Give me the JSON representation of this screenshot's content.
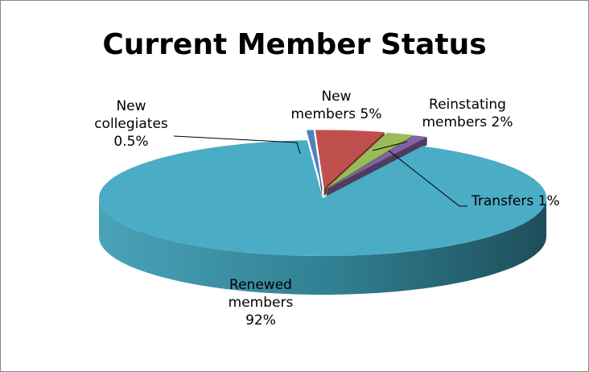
{
  "chart_data": {
    "type": "pie",
    "title": "Current Member Status",
    "categories": [
      "New collegiates",
      "New members",
      "Reinstating members",
      "Transfers",
      "Renewed members"
    ],
    "values": [
      0.5,
      5,
      2,
      1,
      92
    ],
    "value_labels": [
      "0.5%",
      "5%",
      "2%",
      "1%",
      "92%"
    ],
    "colors": [
      "#4f81bd",
      "#c0504d",
      "#9bbb59",
      "#8064a2",
      "#4bacc6"
    ],
    "three_d": true
  }
}
